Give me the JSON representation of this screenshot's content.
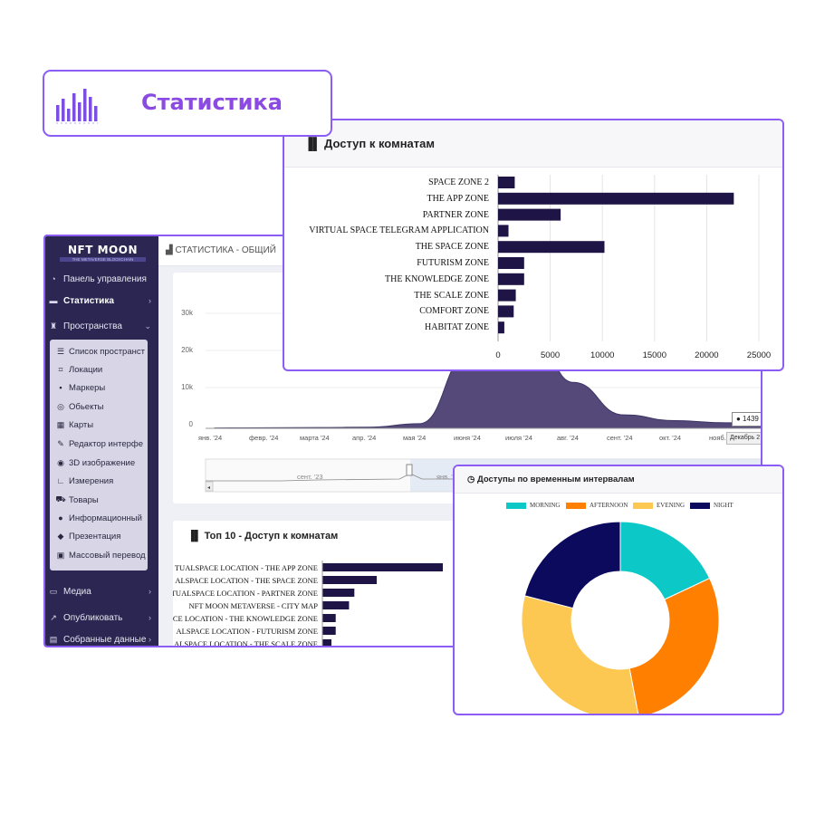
{
  "header": {
    "title": "Статистика"
  },
  "colors": {
    "accent": "#8b5cf6",
    "navy": "#1e1445",
    "area": "#5a5080"
  },
  "sidebar": {
    "logo_main": "NFT MOON",
    "logo_sub": "THE METAVERSE BLOCKCHAIN",
    "items": [
      {
        "label": "Панель управления",
        "icon": "dashboard-icon"
      },
      {
        "label": "Статистика",
        "icon": "stats-icon"
      },
      {
        "label": "Пространства",
        "icon": "spaces-icon"
      },
      {
        "label": "Медиа",
        "icon": "media-icon"
      },
      {
        "label": "Опубликовать",
        "icon": "publish-icon"
      },
      {
        "label": "Собранные данные",
        "icon": "data-icon"
      }
    ],
    "submenu": [
      {
        "label": "Список пространст",
        "icon": "list-icon"
      },
      {
        "label": "Локации",
        "icon": "location-icon"
      },
      {
        "label": "Маркеры",
        "icon": "marker-icon"
      },
      {
        "label": "Обьекты",
        "icon": "object-icon"
      },
      {
        "label": "Карты",
        "icon": "map-icon"
      },
      {
        "label": "Редактор интерфе",
        "icon": "editor-icon"
      },
      {
        "label": "3D изображение",
        "icon": "cube-icon"
      },
      {
        "label": "Измерения",
        "icon": "ruler-icon"
      },
      {
        "label": "Товары",
        "icon": "cart-icon"
      },
      {
        "label": "Информационный",
        "icon": "info-icon"
      },
      {
        "label": "Презентация",
        "icon": "presentation-icon"
      },
      {
        "label": "Массовый перевод",
        "icon": "translate-icon"
      }
    ]
  },
  "topbar": {
    "breadcrumb": "СТАТИСТИКА - ОБЩИЙ"
  },
  "timeline": {
    "y_ticks": [
      "30k",
      "20k",
      "10k",
      "0"
    ],
    "x_ticks": [
      "янв. '24",
      "февр. '24",
      "марта '24",
      "апр. '24",
      "мая '24",
      "июня '24",
      "июля '24",
      "авг. '24",
      "сент. '24",
      "окт. '24",
      "нояб. '24"
    ],
    "navigator_ticks": [
      "сент. '23",
      "янв. '24"
    ],
    "tooltip_value": "● 1439",
    "tooltip_date": "Декабрь 2"
  },
  "top10": {
    "title": "Топ 10 - Доступ к комнатам",
    "labels": [
      "TUALSPACE LOCATION - THE APP ZONE",
      "ALSPACE LOCATION - THE SPACE ZONE",
      "TUALSPACE LOCATION - PARTNER ZONE",
      "NFT MOON METAVERSE - CITY MAP",
      "CE LOCATION - THE KNOWLEDGE ZONE",
      "ALSPACE LOCATION - FUTURISM ZONE",
      "ALSPACE LOCATION - THE SCALE ZONE"
    ]
  },
  "rooms": {
    "title": "Доступ к комнатам"
  },
  "time": {
    "title": "Доступы по временным интервалам"
  },
  "chart_data": [
    {
      "type": "bar",
      "orientation": "horizontal",
      "title": "Доступ к комнатам",
      "categories": [
        "SPACE ZONE 2",
        "THE APP ZONE",
        "PARTNER ZONE",
        "VIRTUAL SPACE TELEGRAM APPLICATION",
        "THE SPACE ZONE",
        "FUTURISM ZONE",
        "THE KNOWLEDGE ZONE",
        "THE SCALE ZONE",
        "COMFORT ZONE",
        "HABITAT ZONE"
      ],
      "values": [
        1600,
        22600,
        6000,
        1000,
        10200,
        2500,
        2500,
        1700,
        1500,
        600
      ],
      "x_ticks": [
        "0",
        "5000",
        "10000",
        "15000",
        "20000",
        "25000"
      ],
      "xlim": [
        0,
        25000
      ],
      "grid": true
    },
    {
      "type": "area",
      "title": "",
      "x": [
        "янв. '24",
        "февр. '24",
        "марта '24",
        "апр. '24",
        "мая '24",
        "июня '24",
        "июля '24",
        "авг. '24",
        "сент. '24",
        "окт. '24",
        "нояб. '24"
      ],
      "values": [
        100,
        150,
        200,
        300,
        1200,
        20000,
        35000,
        12000,
        3500,
        2000,
        1439
      ],
      "ylim": [
        0,
        30000
      ]
    },
    {
      "type": "bar",
      "orientation": "horizontal",
      "title": "Топ 10 - Доступ к комнатам",
      "categories": [
        "TUALSPACE LOCATION - THE APP ZONE",
        "ALSPACE LOCATION - THE SPACE ZONE",
        "TUALSPACE LOCATION - PARTNER ZONE",
        "NFT MOON METAVERSE - CITY MAP",
        "CE LOCATION - THE KNOWLEDGE ZONE",
        "ALSPACE LOCATION - FUTURISM ZONE",
        "ALSPACE LOCATION - THE SCALE ZONE"
      ],
      "values": [
        22600,
        10200,
        6000,
        5000,
        2500,
        2500,
        1700
      ]
    },
    {
      "type": "pie",
      "title": "Доступы по временным интервалам",
      "categories": [
        "MORNING",
        "AFTERNOON",
        "EVENING",
        "NIGHT"
      ],
      "values": [
        18,
        29,
        32,
        21
      ],
      "colors": [
        "#0cc9c8",
        "#ff8000",
        "#fdc851",
        "#0c0a5c"
      ],
      "legend": "top"
    }
  ]
}
